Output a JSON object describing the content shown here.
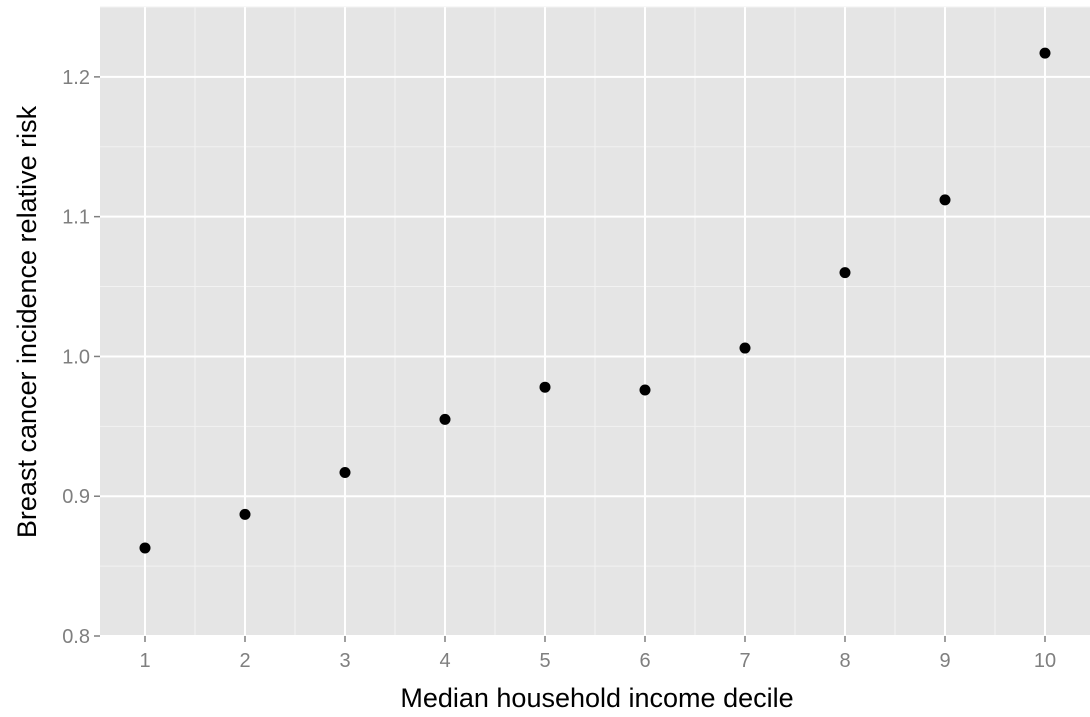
{
  "chart_data": {
    "type": "scatter",
    "title": "",
    "xlabel": "Median household income decile",
    "ylabel": "Breast cancer incidence relative risk",
    "x": [
      1,
      2,
      3,
      4,
      5,
      6,
      7,
      8,
      9,
      10
    ],
    "y": [
      0.863,
      0.887,
      0.917,
      0.955,
      0.978,
      0.976,
      1.006,
      1.06,
      1.112,
      1.217
    ],
    "xlim": [
      0.55,
      10.45
    ],
    "ylim": [
      0.8,
      1.25
    ],
    "xticks": [
      1,
      2,
      3,
      4,
      5,
      6,
      7,
      8,
      9,
      10
    ],
    "xtick_labels": [
      "1",
      "2",
      "3",
      "4",
      "5",
      "6",
      "7",
      "8",
      "9",
      "10"
    ],
    "yticks": [
      0.8,
      0.9,
      1.0,
      1.1,
      1.2
    ],
    "ytick_labels": [
      "0.8",
      "0.9",
      "1.0",
      "1.1",
      "1.2"
    ],
    "grid": true,
    "legend": "none",
    "colors": {
      "panel": "#e5e5e5",
      "grid_major": "#ffffff",
      "grid_minor": "#f2f2f2",
      "point": "#000000",
      "tick_text": "#7f7f7f"
    }
  }
}
